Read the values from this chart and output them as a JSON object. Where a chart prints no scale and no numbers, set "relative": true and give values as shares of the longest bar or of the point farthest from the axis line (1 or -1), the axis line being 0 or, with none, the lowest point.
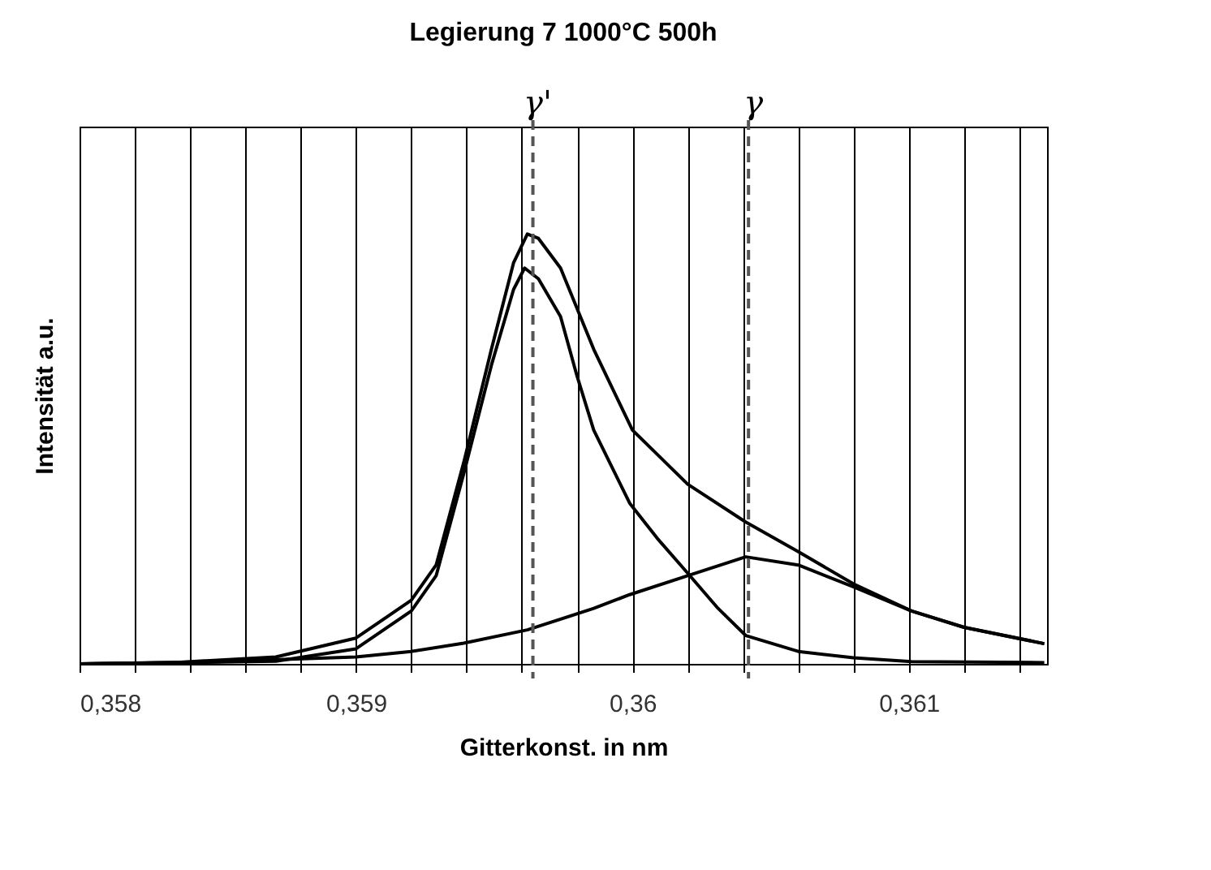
{
  "chart_data": {
    "type": "line",
    "title": "Legierung 7  1000°C 500h",
    "xlabel": "Gitterkonst. in nm",
    "ylabel": "Intensität a.u.",
    "relative": true,
    "tick_labels": "x",
    "grid": "x",
    "legend": false,
    "marker": "none",
    "line_style": "solid",
    "xlim": [
      0.358,
      0.3615
    ],
    "xticks": [
      {
        "value": 0.358,
        "label": "0,358"
      },
      {
        "value": 0.3582,
        "label": null
      },
      {
        "value": 0.3584,
        "label": null
      },
      {
        "value": 0.3586,
        "label": null
      },
      {
        "value": 0.3588,
        "label": null
      },
      {
        "value": 0.359,
        "label": "0,359"
      },
      {
        "value": 0.3592,
        "label": null
      },
      {
        "value": 0.3594,
        "label": null
      },
      {
        "value": 0.3596,
        "label": null
      },
      {
        "value": 0.3598,
        "label": null
      },
      {
        "value": 0.36,
        "label": "0,36"
      },
      {
        "value": 0.3602,
        "label": null
      },
      {
        "value": 0.3604,
        "label": null
      },
      {
        "value": 0.3606,
        "label": null
      },
      {
        "value": 0.3608,
        "label": null
      },
      {
        "value": 0.361,
        "label": "0,361"
      },
      {
        "value": 0.3612,
        "label": null
      },
      {
        "value": 0.3614,
        "label": null
      }
    ],
    "series": [
      {
        "color": "#000000",
        "x": [
          0.358,
          0.35834,
          0.35871,
          0.359,
          0.3592,
          0.35929,
          0.35939,
          0.35949,
          0.35957,
          0.35962,
          0.35966,
          0.35974,
          0.35986,
          0.36,
          0.3602,
          0.36041,
          0.3606,
          0.3608,
          0.36101,
          0.3612,
          0.36149
        ],
        "values": [
          0,
          0.003,
          0.016,
          0.06,
          0.148,
          0.23,
          0.469,
          0.732,
          0.933,
          1,
          0.99,
          0.921,
          0.732,
          0.544,
          0.418,
          0.33,
          0.261,
          0.186,
          0.123,
          0.085,
          0.047
        ]
      },
      {
        "color": "#000000",
        "x": [
          0.358,
          0.35871,
          0.359,
          0.3592,
          0.35929,
          0.35939,
          0.35949,
          0.35957,
          0.35961,
          0.35966,
          0.35974,
          0.3598,
          0.35986,
          0.35999,
          0.36009,
          0.3602,
          0.36031,
          0.36041,
          0.3606,
          0.3608,
          0.36101,
          0.36149
        ],
        "values": [
          0,
          0.006,
          0.035,
          0.123,
          0.205,
          0.443,
          0.695,
          0.871,
          0.921,
          0.896,
          0.808,
          0.669,
          0.544,
          0.374,
          0.292,
          0.211,
          0.129,
          0.066,
          0.029,
          0.014,
          0.005,
          0.003
        ]
      },
      {
        "color": "#000000",
        "x": [
          0.358,
          0.3585,
          0.359,
          0.3592,
          0.35939,
          0.35962,
          0.35986,
          0.35999,
          0.3602,
          0.36041,
          0.3606,
          0.3608,
          0.36101,
          0.3612,
          0.36149
        ],
        "values": [
          0,
          0.005,
          0.016,
          0.029,
          0.048,
          0.079,
          0.129,
          0.161,
          0.205,
          0.249,
          0.23,
          0.179,
          0.123,
          0.085,
          0.047
        ]
      }
    ],
    "ref_lines": [
      {
        "axis": "x",
        "value": 0.35964,
        "label": "γ'",
        "color": "#555555",
        "line_style": "dashed"
      },
      {
        "axis": "x",
        "value": 0.36042,
        "label": "γ",
        "color": "#555555",
        "line_style": "dashed"
      }
    ]
  }
}
